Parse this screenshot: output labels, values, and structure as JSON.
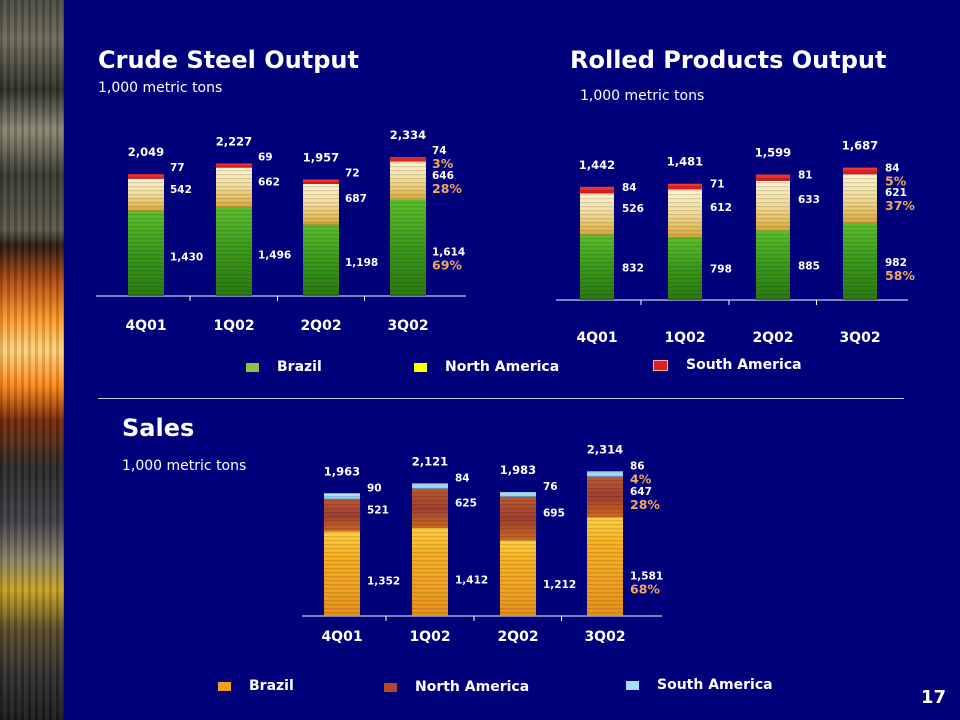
{
  "crude": {
    "title": "Crude Steel Output",
    "unit": "1,000 metric tons",
    "legend": [
      "Brazil",
      "North America",
      "South America"
    ]
  },
  "rolled": {
    "title": "Rolled Products Output",
    "unit": "1,000 metric tons"
  },
  "sales": {
    "title": "Sales",
    "unit": "1,000 metric tons",
    "legend": [
      "Brazil",
      "North America",
      "South America"
    ]
  },
  "page_number": "17",
  "colors": {
    "background": "#00007a",
    "green_series": "#3a9a1a",
    "yellow_series": "#f0e070",
    "red_series": "#e02020",
    "orange_series": "#f0a020",
    "brown_series": "#a04030",
    "lightblue_series": "#a0e0ff",
    "pct_text": "#f0a860"
  },
  "chart_data": [
    {
      "type": "bar",
      "stacked": true,
      "title": "Crude Steel Output",
      "categories": [
        "4Q01",
        "1Q02",
        "2Q02",
        "3Q02"
      ],
      "totals": [
        "2,049",
        "2,227",
        "1,957",
        "2,334"
      ],
      "series": [
        {
          "name": "Brazil",
          "values": [
            1430,
            1496,
            1198,
            1614
          ],
          "labels": [
            "1,430",
            "1,496",
            "1,198",
            "1,614"
          ]
        },
        {
          "name": "North America",
          "values": [
            542,
            662,
            687,
            646
          ],
          "labels": [
            "542",
            "662",
            "687",
            "646"
          ]
        },
        {
          "name": "South America",
          "values": [
            77,
            69,
            72,
            74
          ],
          "labels": [
            "77",
            "69",
            "72",
            "74"
          ]
        }
      ],
      "percentages": [
        "69%",
        "28%",
        "3%"
      ]
    },
    {
      "type": "bar",
      "stacked": true,
      "title": "Rolled Products Output",
      "categories": [
        "4Q01",
        "1Q02",
        "2Q02",
        "3Q02"
      ],
      "totals": [
        "1,442",
        "1,481",
        "1,599",
        "1,687"
      ],
      "series": [
        {
          "name": "Brazil",
          "values": [
            832,
            798,
            885,
            982
          ],
          "labels": [
            "832",
            "798",
            "885",
            "982"
          ]
        },
        {
          "name": "North America",
          "values": [
            526,
            612,
            633,
            621
          ],
          "labels": [
            "526",
            "612",
            "633",
            "621"
          ]
        },
        {
          "name": "South America",
          "values": [
            84,
            71,
            81,
            84
          ],
          "labels": [
            "84",
            "71",
            "81",
            "84"
          ]
        }
      ],
      "percentages": [
        "58%",
        "37%",
        "5%"
      ]
    },
    {
      "type": "bar",
      "stacked": true,
      "title": "Sales",
      "categories": [
        "4Q01",
        "1Q02",
        "2Q02",
        "3Q02"
      ],
      "totals": [
        "1,963",
        "2,121",
        "1,983",
        "2,314"
      ],
      "series": [
        {
          "name": "Brazil",
          "values": [
            1352,
            1412,
            1212,
            1581
          ],
          "labels": [
            "1,352",
            "1,412",
            "1,212",
            "1,581"
          ]
        },
        {
          "name": "North America",
          "values": [
            521,
            625,
            695,
            647
          ],
          "labels": [
            "521",
            "625",
            "695",
            "647"
          ]
        },
        {
          "name": "South America",
          "values": [
            90,
            84,
            76,
            86
          ],
          "labels": [
            "90",
            "84",
            "76",
            "86"
          ]
        }
      ],
      "percentages": [
        "68%",
        "28%",
        "4%"
      ]
    }
  ]
}
